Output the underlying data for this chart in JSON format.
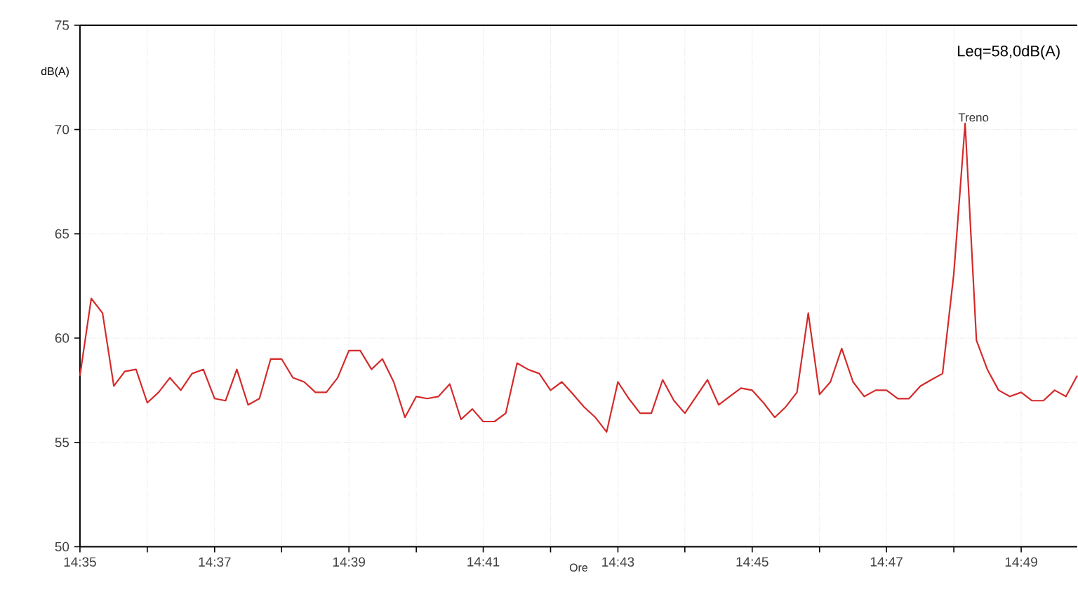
{
  "chart_data": {
    "type": "line",
    "xlabel": "Ore",
    "ylabel": "dB(A)",
    "annotations": [
      "Leq=58,0dB(A)",
      {
        "text": "Treno",
        "x": 14.8028,
        "y": 70.3
      }
    ],
    "x": [
      14.5833,
      14.5861,
      14.5889,
      14.5917,
      14.5944,
      14.5972,
      14.6,
      14.6028,
      14.6056,
      14.6083,
      14.6111,
      14.6139,
      14.6167,
      14.6194,
      14.6222,
      14.625,
      14.6278,
      14.6306,
      14.6333,
      14.6361,
      14.6389,
      14.6417,
      14.6444,
      14.6472,
      14.65,
      14.6528,
      14.6556,
      14.6583,
      14.6611,
      14.6639,
      14.6667,
      14.6694,
      14.6722,
      14.675,
      14.6778,
      14.6806,
      14.6833,
      14.6861,
      14.6889,
      14.6917,
      14.6944,
      14.6972,
      14.7,
      14.7028,
      14.7056,
      14.7083,
      14.7111,
      14.7139,
      14.7167,
      14.7194,
      14.7222,
      14.725,
      14.7278,
      14.7306,
      14.7333,
      14.7361,
      14.7389,
      14.7417,
      14.7444,
      14.7472,
      14.75,
      14.7528,
      14.7556,
      14.7583,
      14.7611,
      14.7639,
      14.7667,
      14.7694,
      14.7722,
      14.775,
      14.7778,
      14.7806,
      14.7833,
      14.7861,
      14.7889,
      14.7917,
      14.7944,
      14.7972,
      14.8,
      14.8028,
      14.8056,
      14.8083,
      14.8111,
      14.8139,
      14.8167,
      14.8194,
      14.8222,
      14.825,
      14.8278,
      14.8306
    ],
    "series": [
      {
        "color": "#d42a2a",
        "values": [
          58.2,
          61.9,
          61.2,
          57.7,
          58.4,
          58.5,
          56.9,
          57.4,
          58.1,
          57.5,
          58.3,
          58.5,
          57.1,
          57.0,
          58.5,
          56.8,
          57.1,
          59.0,
          59.0,
          58.1,
          57.9,
          57.4,
          57.4,
          58.1,
          59.4,
          59.4,
          58.5,
          59.0,
          57.9,
          56.2,
          57.2,
          57.1,
          57.2,
          57.8,
          56.1,
          56.6,
          56.0,
          56.0,
          56.4,
          58.8,
          58.5,
          58.3,
          57.5,
          57.9,
          57.3,
          56.7,
          56.2,
          55.5,
          57.9,
          57.1,
          56.4,
          56.4,
          58.0,
          57.0,
          56.4,
          57.2,
          58.0,
          56.8,
          57.2,
          57.6,
          57.5,
          56.9,
          56.2,
          56.7,
          57.4,
          61.2,
          57.3,
          57.9,
          59.5,
          57.9,
          57.2,
          57.5,
          57.5,
          57.1,
          57.1,
          57.7,
          58.0,
          58.3,
          63.1,
          70.3,
          59.9,
          58.5,
          57.5,
          57.2,
          57.4,
          57.0,
          57.0,
          57.5,
          57.2,
          58.2
        ]
      }
    ],
    "xlim": [
      14.5833,
      14.8306
    ],
    "ylim": [
      50,
      75
    ],
    "xticks": [
      {
        "value": 14.5833,
        "label": "14:35"
      },
      {
        "value": 14.6,
        "label": null
      },
      {
        "value": 14.6167,
        "label": "14:37"
      },
      {
        "value": 14.6333,
        "label": null
      },
      {
        "value": 14.65,
        "label": "14:39"
      },
      {
        "value": 14.6667,
        "label": null
      },
      {
        "value": 14.6833,
        "label": "14:41"
      },
      {
        "value": 14.7,
        "label": null
      },
      {
        "value": 14.7167,
        "label": "14:43"
      },
      {
        "value": 14.7333,
        "label": null
      },
      {
        "value": 14.75,
        "label": "14:45"
      },
      {
        "value": 14.7667,
        "label": null
      },
      {
        "value": 14.7833,
        "label": "14:47"
      },
      {
        "value": 14.8,
        "label": null
      },
      {
        "value": 14.8167,
        "label": "14:49"
      }
    ],
    "yticks": [
      50,
      55,
      60,
      65,
      70,
      75
    ],
    "grid": true,
    "line_style": "solid"
  }
}
